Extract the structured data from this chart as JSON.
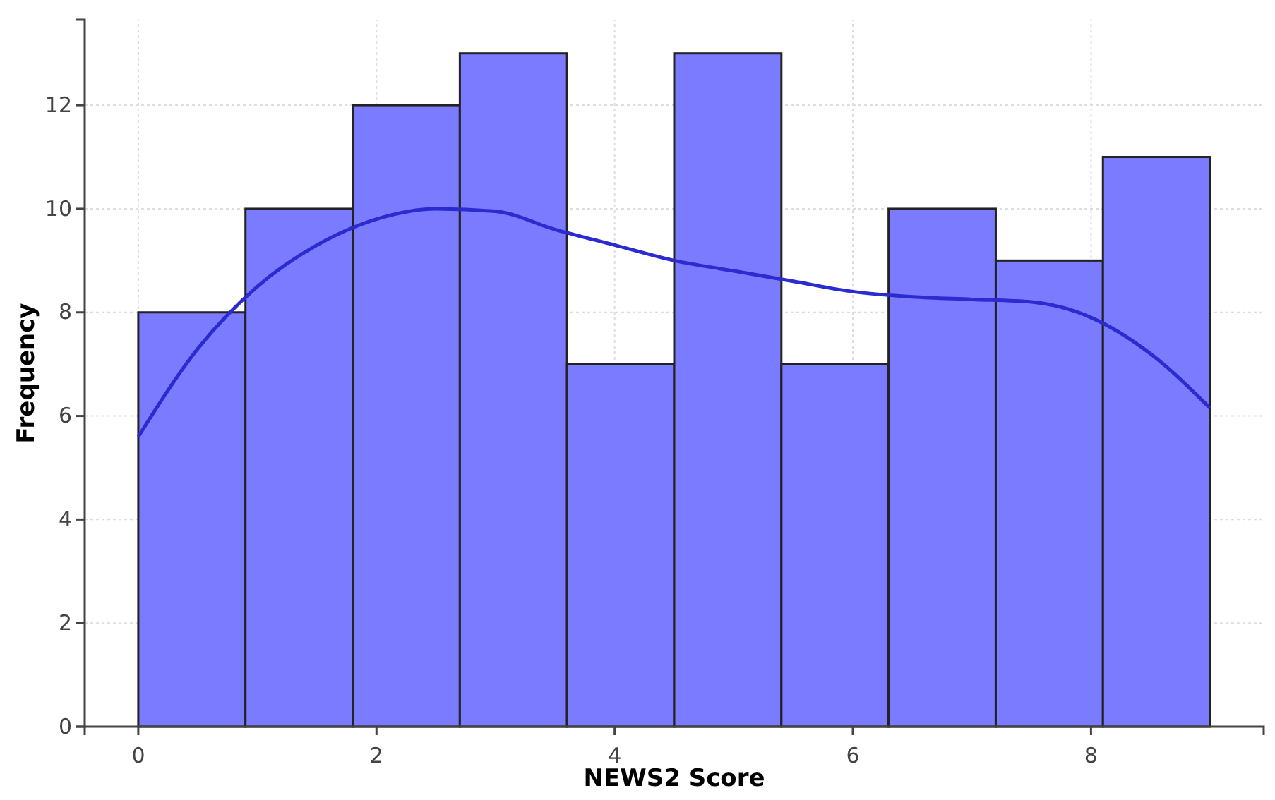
{
  "chart_data": {
    "type": "histogram",
    "xlabel": "NEWS2 Score",
    "ylabel": "Frequency",
    "bins": [
      0,
      0.9,
      1.8,
      2.7,
      3.6,
      4.5,
      5.4,
      6.3,
      7.2,
      8.1,
      9
    ],
    "values": [
      8,
      10,
      12,
      13,
      7,
      13,
      7,
      10,
      9,
      11
    ],
    "color": "#7b7bff",
    "series": [
      {
        "type": "line",
        "color": "#2b2bd0",
        "x": [
          0,
          0.5,
          1,
          1.5,
          2,
          2.5,
          3,
          3.5,
          4,
          4.5,
          5,
          5.5,
          6,
          6.5,
          7,
          7.5,
          8,
          8.5,
          9
        ],
        "values": [
          5.6,
          7.3,
          8.5,
          9.3,
          9.8,
          10.0,
          9.95,
          9.6,
          9.3,
          9.0,
          8.8,
          8.6,
          8.4,
          8.3,
          8.25,
          8.2,
          7.9,
          7.2,
          6.15
        ]
      }
    ],
    "xlim": [
      -0.45,
      9.45
    ],
    "xticks": [
      0,
      2,
      4,
      6,
      8
    ],
    "ylim": [
      0,
      13.65
    ],
    "yticks": [
      0,
      2,
      4,
      6,
      8,
      10,
      12
    ],
    "grid": true
  }
}
